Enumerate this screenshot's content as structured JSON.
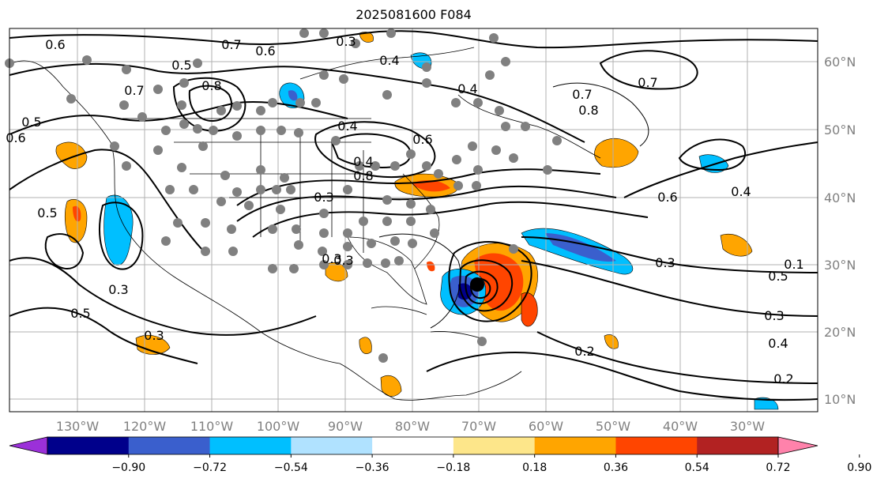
{
  "title": "2025081600 F084",
  "longitude_labels": [
    "130°W",
    "120°W",
    "110°W",
    "100°W",
    "90°W",
    "80°W",
    "70°W",
    "60°W",
    "50°W",
    "40°W",
    "30°W"
  ],
  "latitude_labels": [
    "60°N",
    "50°N",
    "40°N",
    "30°N",
    "20°N",
    "10°N"
  ],
  "contour_labels": [
    "0.6",
    "0.7",
    "0.6",
    "0.3",
    "0.4",
    "0.5",
    "0.8",
    "0.7",
    "0.4",
    "0.7",
    "0.8",
    "0.6",
    "0.5",
    "0.5",
    "0.4",
    "0.7",
    "0.8",
    "0.6",
    "0.3",
    "0.4",
    "0.3",
    "0.5",
    "0.5",
    "0.3",
    "0.3",
    "0.4",
    "0.2",
    "0.2",
    "0.3",
    "0.6",
    "0.4",
    "0.4",
    "0.5",
    "0.3",
    "0.1",
    "0.3"
  ],
  "colorbar": {
    "ticks": [
      "−0.90",
      "−0.72",
      "−0.54",
      "−0.36",
      "−0.18",
      "0.18",
      "0.36",
      "0.54",
      "0.72",
      "0.90"
    ],
    "colors": [
      "#9b30d9",
      "#00008b",
      "#3a5fcd",
      "#00bfff",
      "#b0e2ff",
      "#ffffff",
      "#fde68a",
      "#ffa500",
      "#ff4500",
      "#b22222",
      "#ff82ab"
    ]
  },
  "storm_marker": "filled-circle"
}
